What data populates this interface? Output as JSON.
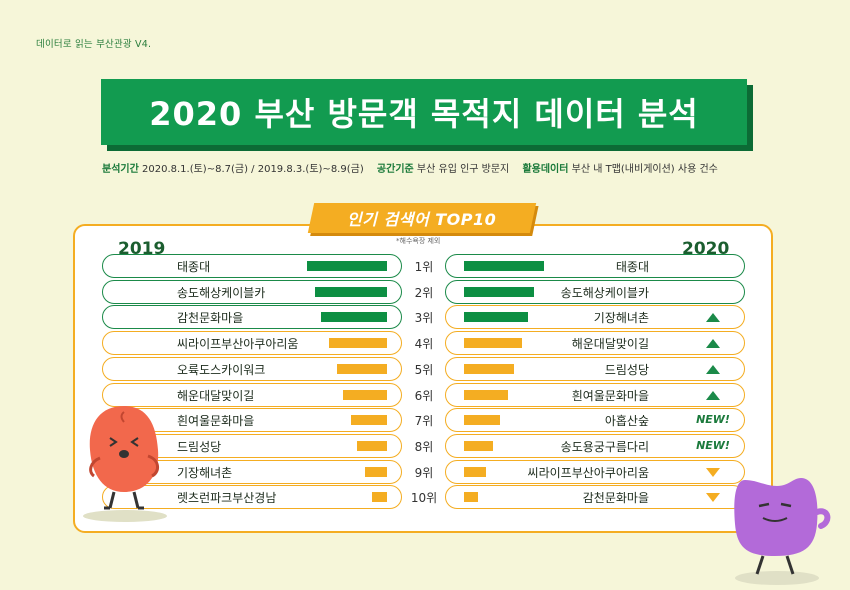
{
  "series_label": "데이터로 읽는 부산관광 V4.",
  "title": "2020 부산 방문객 목적지 데이터 분석",
  "meta": {
    "period_key": "분석기간",
    "period_val": "2020.8.1.(토)~8.7(금) / 2019.8.3.(토)~8.9(금)",
    "space_key": "공간기준",
    "space_val": "부산 유입 인구 방문지",
    "data_key": "활용데이터",
    "data_val": "부산 내 T맵(내비게이션) 사용 건수"
  },
  "tag": "인기 검색어 TOP10",
  "note": "*해수욕장 제외",
  "year_left": "2019",
  "year_right": "2020",
  "colors": {
    "green": "#0d8f43",
    "orange": "#f4ad22",
    "title_bg": "#129b50",
    "page_bg": "#f6f6d9"
  },
  "chart_data": {
    "type": "bar",
    "ranks": [
      "1위",
      "2위",
      "3위",
      "4위",
      "5위",
      "6위",
      "7위",
      "8위",
      "9위",
      "10위"
    ],
    "left": [
      {
        "name": "태종대",
        "value": 1.0
      },
      {
        "name": "송도해상케이블카",
        "value": 0.9
      },
      {
        "name": "감천문화마을",
        "value": 0.82
      },
      {
        "name": "씨라이프부산아쿠아리움",
        "value": 0.72
      },
      {
        "name": "오륙도스카이워크",
        "value": 0.62
      },
      {
        "name": "해운대달맞이길",
        "value": 0.55
      },
      {
        "name": "흰여울문화마을",
        "value": 0.45
      },
      {
        "name": "드림성당",
        "value": 0.37
      },
      {
        "name": "기장해녀촌",
        "value": 0.28
      },
      {
        "name": "렛츠런파크부산경남",
        "value": 0.19
      }
    ],
    "right": [
      {
        "name": "태종대",
        "value": 1.0,
        "trend": ""
      },
      {
        "name": "송도해상케이블카",
        "value": 0.88,
        "trend": ""
      },
      {
        "name": "기장해녀촌",
        "value": 0.8,
        "trend": "up"
      },
      {
        "name": "해운대달맞이길",
        "value": 0.72,
        "trend": "up"
      },
      {
        "name": "드림성당",
        "value": 0.62,
        "trend": "up"
      },
      {
        "name": "흰여울문화마을",
        "value": 0.55,
        "trend": "up"
      },
      {
        "name": "아홉산숲",
        "value": 0.45,
        "trend": "NEW!"
      },
      {
        "name": "송도용궁구름다리",
        "value": 0.36,
        "trend": "NEW!"
      },
      {
        "name": "씨라이프부산아쿠아리움",
        "value": 0.27,
        "trend": "down"
      },
      {
        "name": "감천문화마을",
        "value": 0.18,
        "trend": "down"
      }
    ]
  }
}
